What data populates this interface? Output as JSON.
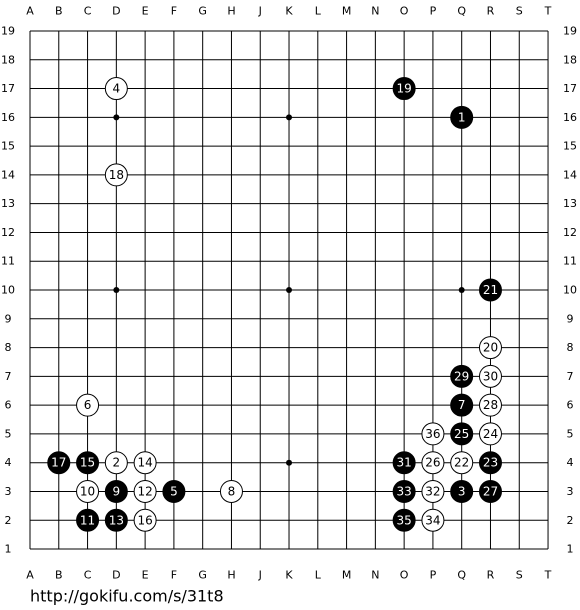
{
  "board": {
    "columns": [
      "A",
      "B",
      "C",
      "D",
      "E",
      "F",
      "G",
      "H",
      "J",
      "K",
      "L",
      "M",
      "N",
      "O",
      "P",
      "Q",
      "R",
      "S",
      "T"
    ],
    "rows": [
      19,
      18,
      17,
      16,
      15,
      14,
      13,
      12,
      11,
      10,
      9,
      8,
      7,
      6,
      5,
      4,
      3,
      2,
      1
    ],
    "stones": [
      {
        "number": 1,
        "color": "black",
        "col": "Q",
        "row": 16
      },
      {
        "number": 2,
        "color": "white",
        "col": "D",
        "row": 4
      },
      {
        "number": 3,
        "color": "black",
        "col": "Q",
        "row": 3
      },
      {
        "number": 4,
        "color": "white",
        "col": "D",
        "row": 17
      },
      {
        "number": 5,
        "color": "black",
        "col": "F",
        "row": 3
      },
      {
        "number": 6,
        "color": "white",
        "col": "C",
        "row": 6
      },
      {
        "number": 7,
        "color": "black",
        "col": "Q",
        "row": 6
      },
      {
        "number": 8,
        "color": "white",
        "col": "H",
        "row": 3
      },
      {
        "number": 9,
        "color": "black",
        "col": "D",
        "row": 3
      },
      {
        "number": 10,
        "color": "white",
        "col": "C",
        "row": 3
      },
      {
        "number": 11,
        "color": "black",
        "col": "C",
        "row": 2
      },
      {
        "number": 12,
        "color": "white",
        "col": "E",
        "row": 3
      },
      {
        "number": 13,
        "color": "black",
        "col": "D",
        "row": 2
      },
      {
        "number": 14,
        "color": "white",
        "col": "E",
        "row": 4
      },
      {
        "number": 15,
        "color": "black",
        "col": "C",
        "row": 4
      },
      {
        "number": 16,
        "color": "white",
        "col": "E",
        "row": 2
      },
      {
        "number": 17,
        "color": "black",
        "col": "B",
        "row": 4
      },
      {
        "number": 18,
        "color": "white",
        "col": "D",
        "row": 14
      },
      {
        "number": 19,
        "color": "black",
        "col": "O",
        "row": 17
      },
      {
        "number": 20,
        "color": "white",
        "col": "R",
        "row": 8
      },
      {
        "number": 21,
        "color": "black",
        "col": "R",
        "row": 10
      },
      {
        "number": 22,
        "color": "white",
        "col": "Q",
        "row": 4
      },
      {
        "number": 23,
        "color": "black",
        "col": "R",
        "row": 4
      },
      {
        "number": 24,
        "color": "white",
        "col": "R",
        "row": 5
      },
      {
        "number": 25,
        "color": "black",
        "col": "Q",
        "row": 5
      },
      {
        "number": 26,
        "color": "white",
        "col": "P",
        "row": 4
      },
      {
        "number": 27,
        "color": "black",
        "col": "R",
        "row": 3
      },
      {
        "number": 28,
        "color": "white",
        "col": "R",
        "row": 6
      },
      {
        "number": 29,
        "color": "black",
        "col": "Q",
        "row": 7
      },
      {
        "number": 30,
        "color": "white",
        "col": "R",
        "row": 7
      },
      {
        "number": 31,
        "color": "black",
        "col": "O",
        "row": 4
      },
      {
        "number": 32,
        "color": "white",
        "col": "P",
        "row": 3
      },
      {
        "number": 33,
        "color": "black",
        "col": "O",
        "row": 3
      },
      {
        "number": 34,
        "color": "white",
        "col": "P",
        "row": 2
      },
      {
        "number": 35,
        "color": "black",
        "col": "O",
        "row": 2
      },
      {
        "number": 36,
        "color": "white",
        "col": "P",
        "row": 5
      }
    ]
  },
  "footer": {
    "url": "http://gokifu.com/s/31t8"
  }
}
